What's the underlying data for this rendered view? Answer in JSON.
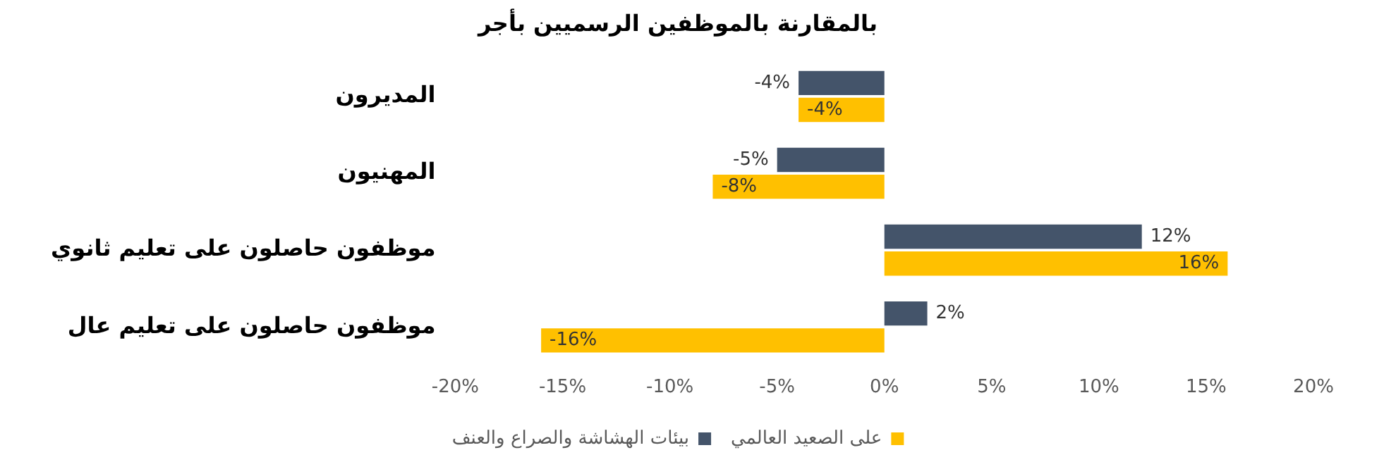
{
  "chart_data": {
    "type": "bar",
    "orientation": "horizontal",
    "title": "بالمقارنة بالموظفين الرسميين بأجر",
    "categories": [
      "المديرون",
      "المهنيون",
      "موظفون حاصلون على تعليم ثانوي",
      "موظفون حاصلون على تعليم عال"
    ],
    "series": [
      {
        "name": "بيئات الهشاشة والصراع والعنف",
        "color": "#44546a",
        "values": [
          -4,
          -5,
          12,
          2
        ],
        "value_labels": [
          "-4%",
          "-5%",
          "12%",
          "2%"
        ]
      },
      {
        "name": "على الصعيد العالمي",
        "color": "#ffc000",
        "values": [
          -4,
          -8,
          16,
          -16
        ],
        "value_labels": [
          "-4%",
          "-8%",
          "16%",
          "-16%"
        ]
      }
    ],
    "xlim": [
      -20,
      20
    ],
    "xticks": [
      {
        "value": -20,
        "label": "-20%"
      },
      {
        "value": -15,
        "label": "-15%"
      },
      {
        "value": -10,
        "label": "-10%"
      },
      {
        "value": -5,
        "label": "-5%"
      },
      {
        "value": 0,
        "label": "0%"
      },
      {
        "value": 5,
        "label": "5%"
      },
      {
        "value": 10,
        "label": "10%"
      },
      {
        "value": 15,
        "label": "15%"
      },
      {
        "value": 20,
        "label": "20%"
      }
    ],
    "grid": false,
    "legend": "bottom"
  }
}
